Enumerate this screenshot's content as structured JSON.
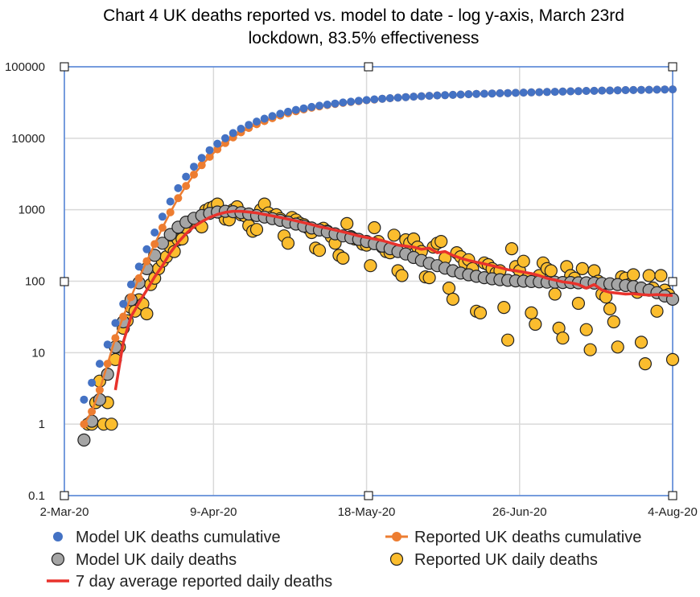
{
  "chart_data": {
    "type": "scatter",
    "title_lines": [
      "Chart 4 UK deaths reported vs. model to date - log y-axis, March 23rd",
      "lockdown, 83.5% effectiveness"
    ],
    "xlabel": "",
    "ylabel": "",
    "y_scale": "log",
    "ylim": [
      0.1,
      100000
    ],
    "xlim": [
      "2020-03-02",
      "2020-08-04"
    ],
    "y_tick_labels": [
      "0.1",
      "1",
      "10",
      "100",
      "1000",
      "10000",
      "100000"
    ],
    "y_tick_values": [
      0.1,
      1,
      10,
      100,
      1000,
      10000,
      100000
    ],
    "x_tick_labels": [
      "2-Mar-20",
      "9-Apr-20",
      "18-May-20",
      "26-Jun-20",
      "4-Aug-20"
    ],
    "x_tick_values": [
      "2020-03-02",
      "2020-04-09",
      "2020-05-18",
      "2020-06-26",
      "2020-08-04"
    ],
    "grid": true,
    "legend_position": "bottom",
    "colors": {
      "model_cumulative": "#4472c4",
      "reported_cumulative": "#ed7d31",
      "model_daily": "#a5a5a5",
      "reported_daily": "#fbbd2e",
      "avg7": "#e8322c",
      "frame": "#4f81d8"
    },
    "model_x": [
      "2020-03-07",
      "2020-03-09",
      "2020-03-11",
      "2020-03-13",
      "2020-03-15",
      "2020-03-17",
      "2020-03-19",
      "2020-03-21",
      "2020-03-23",
      "2020-03-25",
      "2020-03-27",
      "2020-03-29",
      "2020-03-31",
      "2020-04-02",
      "2020-04-04",
      "2020-04-06",
      "2020-04-08",
      "2020-04-10",
      "2020-04-12",
      "2020-04-14",
      "2020-04-16",
      "2020-04-18",
      "2020-04-20",
      "2020-04-22",
      "2020-04-24",
      "2020-04-26",
      "2020-04-28",
      "2020-04-30",
      "2020-05-02",
      "2020-05-04",
      "2020-05-06",
      "2020-05-08",
      "2020-05-10",
      "2020-05-12",
      "2020-05-14",
      "2020-05-16",
      "2020-05-18",
      "2020-05-20",
      "2020-05-22",
      "2020-05-24",
      "2020-05-26",
      "2020-05-28",
      "2020-05-30",
      "2020-06-01",
      "2020-06-03",
      "2020-06-05",
      "2020-06-07",
      "2020-06-09",
      "2020-06-11",
      "2020-06-13",
      "2020-06-15",
      "2020-06-17",
      "2020-06-19",
      "2020-06-21",
      "2020-06-23",
      "2020-06-25",
      "2020-06-27",
      "2020-06-29",
      "2020-07-01",
      "2020-07-03",
      "2020-07-05",
      "2020-07-07",
      "2020-07-09",
      "2020-07-11",
      "2020-07-13",
      "2020-07-15",
      "2020-07-17",
      "2020-07-19",
      "2020-07-21",
      "2020-07-23",
      "2020-07-25",
      "2020-07-27",
      "2020-07-29",
      "2020-07-31",
      "2020-08-02",
      "2020-08-04"
    ],
    "series": [
      {
        "name": "Model UK deaths cumulative",
        "key": "model_cumulative",
        "marker": "dot",
        "values": [
          2.2,
          3.8,
          7,
          13,
          26,
          48,
          90,
          160,
          280,
          480,
          800,
          1300,
          2000,
          2900,
          4000,
          5300,
          6800,
          8400,
          10000,
          11800,
          13600,
          15400,
          17100,
          18800,
          20400,
          22000,
          23500,
          24900,
          26200,
          27400,
          28500,
          29600,
          30600,
          31600,
          32500,
          33400,
          34200,
          35000,
          35700,
          36400,
          37000,
          37600,
          38200,
          38700,
          39200,
          39700,
          40100,
          40500,
          40900,
          41300,
          41700,
          42000,
          42300,
          42600,
          42900,
          43200,
          43500,
          43800,
          44100,
          44400,
          44700,
          45000,
          45300,
          45600,
          45900,
          46100,
          46400,
          46600,
          46900,
          47100,
          47300,
          47500,
          47700,
          47900,
          48100,
          48300
        ]
      },
      {
        "name": "Reported UK deaths cumulative",
        "key": "reported_cumulative",
        "marker": "dot-line",
        "values": [
          1,
          1.5,
          3,
          7,
          16,
          32,
          60,
          110,
          190,
          330,
          560,
          920,
          1450,
          2150,
          3100,
          4200,
          5500,
          7000,
          8600,
          10300,
          12100,
          13900,
          15700,
          17400,
          19100,
          20800,
          22400,
          23900,
          25300,
          26700,
          27900,
          29100,
          30200,
          31200,
          32200,
          33100,
          34000,
          34800,
          35600,
          36300,
          37000,
          37600,
          38200,
          38700,
          39200,
          39700,
          40100,
          40500,
          40900,
          41300,
          41700,
          42000,
          42300,
          42600,
          42900,
          43200,
          43500,
          43800,
          44100,
          44400,
          44700,
          45000,
          45300,
          45600,
          45900,
          46100,
          46400,
          46600,
          46900,
          47100,
          47300,
          47500,
          47700,
          47900,
          48100,
          48300
        ]
      },
      {
        "name": "Model UK daily deaths",
        "key": "model_daily",
        "marker": "circle",
        "values": [
          0.6,
          1.1,
          2.2,
          5,
          12,
          27,
          55,
          95,
          150,
          230,
          340,
          450,
          570,
          670,
          760,
          830,
          890,
          930,
          950,
          940,
          910,
          870,
          830,
          790,
          750,
          710,
          670,
          630,
          590,
          555,
          520,
          490,
          460,
          430,
          405,
          385,
          360,
          335,
          310,
          285,
          260,
          240,
          215,
          195,
          178,
          165,
          152,
          140,
          130,
          123,
          117,
          112,
          108,
          105,
          103,
          101,
          100,
          99,
          98,
          97,
          97,
          96,
          96,
          95,
          95,
          94,
          93,
          92,
          90,
          87,
          84,
          80,
          75,
          69,
          62,
          56
        ]
      },
      {
        "name": "7 day average reported daily deaths",
        "key": "avg7",
        "marker": "line",
        "values": [
          null,
          null,
          null,
          null,
          3,
          14,
          32,
          50,
          75,
          115,
          165,
          250,
          350,
          460,
          580,
          680,
          780,
          860,
          920,
          950,
          950,
          930,
          900,
          860,
          820,
          780,
          740,
          700,
          660,
          620,
          580,
          550,
          520,
          490,
          460,
          430,
          410,
          390,
          370,
          345,
          320,
          310,
          300,
          280,
          290,
          250,
          260,
          230,
          210,
          195,
          185,
          175,
          165,
          155,
          145,
          140,
          134,
          128,
          120,
          110,
          104,
          98,
          95,
          90,
          80,
          90,
          75,
          70,
          68,
          66,
          67,
          65,
          64,
          65,
          64,
          63
        ]
      }
    ],
    "reported_daily": {
      "name": "Reported UK daily deaths",
      "x": [
        "2020-03-08",
        "2020-03-09",
        "2020-03-10",
        "2020-03-11",
        "2020-03-12",
        "2020-03-13",
        "2020-03-14",
        "2020-03-15",
        "2020-03-16",
        "2020-03-17",
        "2020-03-18",
        "2020-03-19",
        "2020-03-20",
        "2020-03-21",
        "2020-03-22",
        "2020-03-23",
        "2020-03-24",
        "2020-03-25",
        "2020-03-26",
        "2020-03-27",
        "2020-03-28",
        "2020-03-29",
        "2020-03-30",
        "2020-03-31",
        "2020-04-01",
        "2020-04-02",
        "2020-04-03",
        "2020-04-04",
        "2020-04-05",
        "2020-04-06",
        "2020-04-07",
        "2020-04-08",
        "2020-04-09",
        "2020-04-10",
        "2020-04-11",
        "2020-04-12",
        "2020-04-13",
        "2020-04-14",
        "2020-04-15",
        "2020-04-16",
        "2020-04-17",
        "2020-04-18",
        "2020-04-19",
        "2020-04-20",
        "2020-04-21",
        "2020-04-22",
        "2020-04-23",
        "2020-04-24",
        "2020-04-25",
        "2020-04-26",
        "2020-04-27",
        "2020-04-28",
        "2020-04-29",
        "2020-04-30",
        "2020-05-01",
        "2020-05-02",
        "2020-05-03",
        "2020-05-04",
        "2020-05-05",
        "2020-05-06",
        "2020-05-07",
        "2020-05-08",
        "2020-05-09",
        "2020-05-10",
        "2020-05-11",
        "2020-05-12",
        "2020-05-13",
        "2020-05-14",
        "2020-05-15",
        "2020-05-16",
        "2020-05-17",
        "2020-05-18",
        "2020-05-19",
        "2020-05-20",
        "2020-05-21",
        "2020-05-22",
        "2020-05-23",
        "2020-05-24",
        "2020-05-25",
        "2020-05-26",
        "2020-05-27",
        "2020-05-28",
        "2020-05-29",
        "2020-05-30",
        "2020-05-31",
        "2020-06-01",
        "2020-06-02",
        "2020-06-03",
        "2020-06-04",
        "2020-06-05",
        "2020-06-06",
        "2020-06-07",
        "2020-06-08",
        "2020-06-09",
        "2020-06-10",
        "2020-06-11",
        "2020-06-12",
        "2020-06-13",
        "2020-06-14",
        "2020-06-15",
        "2020-06-16",
        "2020-06-17",
        "2020-06-18",
        "2020-06-19",
        "2020-06-20",
        "2020-06-21",
        "2020-06-22",
        "2020-06-23",
        "2020-06-24",
        "2020-06-25",
        "2020-06-26",
        "2020-06-27",
        "2020-06-28",
        "2020-06-29",
        "2020-06-30",
        "2020-07-01",
        "2020-07-02",
        "2020-07-03",
        "2020-07-04",
        "2020-07-05",
        "2020-07-06",
        "2020-07-07",
        "2020-07-08",
        "2020-07-09",
        "2020-07-10",
        "2020-07-11",
        "2020-07-12",
        "2020-07-13",
        "2020-07-14",
        "2020-07-15",
        "2020-07-16",
        "2020-07-17",
        "2020-07-18",
        "2020-07-19",
        "2020-07-20",
        "2020-07-21",
        "2020-07-22",
        "2020-07-23",
        "2020-07-24",
        "2020-07-25",
        "2020-07-26",
        "2020-07-27",
        "2020-07-28",
        "2020-07-29",
        "2020-07-30",
        "2020-07-31",
        "2020-08-01",
        "2020-08-02",
        "2020-08-03",
        "2020-08-04"
      ],
      "values": [
        1,
        1,
        2,
        4,
        1,
        2,
        1,
        8,
        12,
        22,
        28,
        43,
        38,
        55,
        48,
        35,
        90,
        110,
        150,
        190,
        220,
        300,
        260,
        380,
        390,
        560,
        680,
        700,
        650,
        575,
        980,
        1050,
        1100,
        1200,
        900,
        740,
        720,
        1000,
        1100,
        850,
        820,
        600,
        500,
        530,
        1000,
        1200,
        900,
        800,
        850,
        750,
        430,
        340,
        780,
        720,
        650,
        620,
        560,
        480,
        290,
        270,
        550,
        500,
        420,
        340,
        230,
        210,
        640,
        420,
        390,
        380,
        330,
        320,
        165,
        560,
        360,
        300,
        260,
        250,
        440,
        140,
        120,
        380,
        340,
        390,
        300,
        260,
        115,
        112,
        300,
        340,
        360,
        210,
        80,
        56,
        250,
        220,
        180,
        200,
        150,
        38,
        36,
        180,
        170,
        150,
        130,
        140,
        43,
        15,
        285,
        160,
        140,
        190,
        110,
        36,
        25,
        120,
        180,
        150,
        140,
        66,
        22,
        16,
        160,
        120,
        110,
        49,
        150,
        21,
        11,
        140,
        100,
        66,
        60,
        41,
        27,
        12,
        115,
        110,
        90,
        123,
        70,
        14,
        7,
        120,
        80,
        38,
        120,
        75,
        65,
        8
      ]
    },
    "legend": [
      {
        "label": "Model UK deaths cumulative",
        "key": "model_cumulative"
      },
      {
        "label": "Reported UK deaths cumulative",
        "key": "reported_cumulative"
      },
      {
        "label": "Model UK daily deaths",
        "key": "model_daily"
      },
      {
        "label": "Reported UK daily deaths",
        "key": "reported_daily"
      },
      {
        "label": "7 day average reported daily deaths",
        "key": "avg7"
      }
    ]
  }
}
